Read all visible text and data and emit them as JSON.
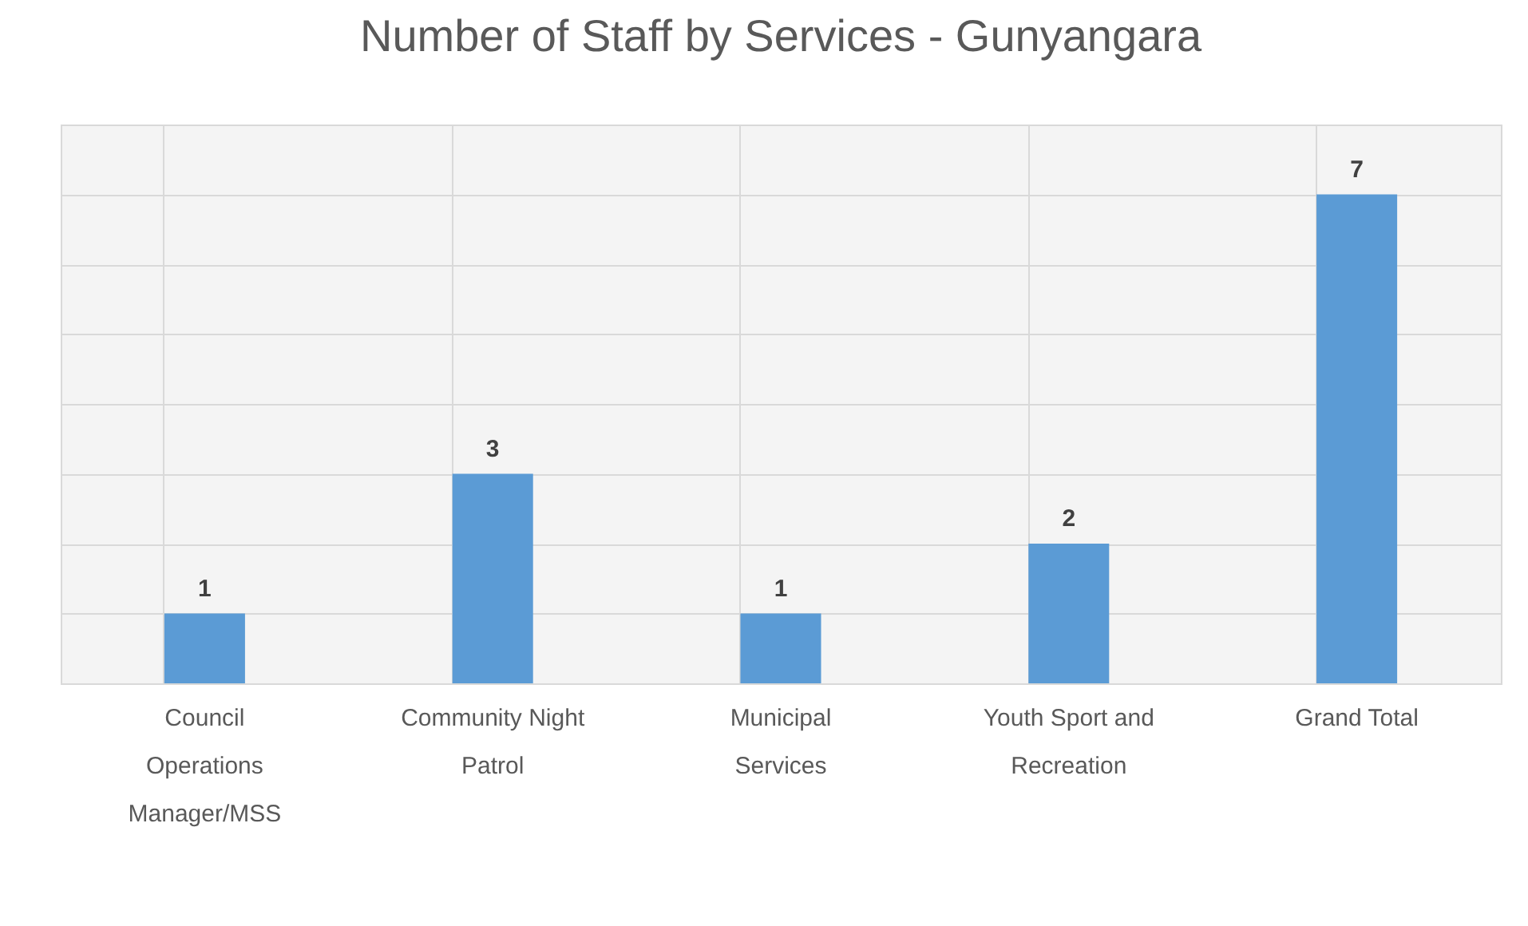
{
  "chart_data": {
    "type": "bar",
    "title": "Number of Staff by Services - Gunyangara",
    "categories": [
      "Council Operations Manager/MSS",
      "Community Night Patrol",
      "Municipal Services",
      "Youth Sport and Recreation",
      "Grand Total"
    ],
    "values": [
      1,
      3,
      1,
      2,
      7
    ],
    "color": "#5b9bd5",
    "data_labels": true,
    "ylim": [
      0,
      8
    ],
    "yticks": [
      {
        "value": 0,
        "label": null
      },
      {
        "value": 1,
        "label": null
      },
      {
        "value": 2,
        "label": null
      },
      {
        "value": 3,
        "label": null
      },
      {
        "value": 4,
        "label": null
      },
      {
        "value": 5,
        "label": null
      },
      {
        "value": 6,
        "label": null
      },
      {
        "value": 7,
        "label": null
      },
      {
        "value": 8,
        "label": null
      }
    ],
    "tick_labels": "x",
    "grid": true
  }
}
